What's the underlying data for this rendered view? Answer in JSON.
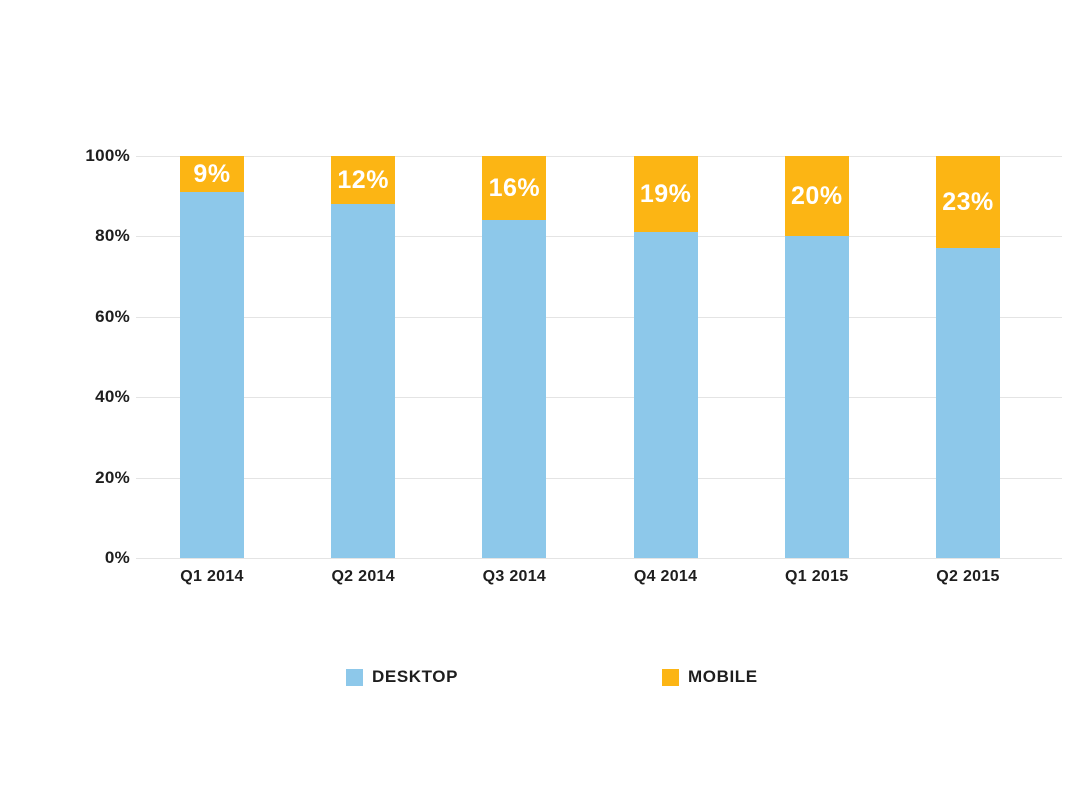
{
  "chart_data": {
    "type": "bar",
    "variant": "stacked-percentage-column",
    "title": "",
    "xlabel": "",
    "ylabel": "",
    "ylim": [
      0,
      100
    ],
    "grid": true,
    "legend_position": "bottom",
    "categories": [
      "Q1 2014",
      "Q2 2014",
      "Q3 2014",
      "Q4 2014",
      "Q1 2015",
      "Q2 2015"
    ],
    "series": [
      {
        "name": "DESKTOP",
        "color": "#8dc8ea",
        "values": [
          91,
          88,
          84,
          81,
          80,
          77
        ]
      },
      {
        "name": "MOBILE",
        "color": "#fcb514",
        "values": [
          9,
          12,
          16,
          19,
          20,
          23
        ],
        "data_labels": [
          "9%",
          "12%",
          "16%",
          "19%",
          "20%",
          "23%"
        ]
      }
    ],
    "y_ticks": [
      {
        "value": 100,
        "label": "100%"
      },
      {
        "value": 80,
        "label": "80%"
      },
      {
        "value": 60,
        "label": "60%"
      },
      {
        "value": 40,
        "label": "40%"
      },
      {
        "value": 20,
        "label": "20%"
      },
      {
        "value": 0,
        "label": "0%"
      }
    ],
    "colors": {
      "desktop": "#8dc8ea",
      "mobile": "#fcb514",
      "gridline": "#e4e4e4",
      "axis_text": "#1e1e1e",
      "bar_label_text": "#ffffff",
      "background": "#ffffff"
    }
  },
  "legend": {
    "items": [
      {
        "label": "DESKTOP",
        "color": "#8dc8ea"
      },
      {
        "label": "MOBILE",
        "color": "#fcb514"
      }
    ]
  }
}
